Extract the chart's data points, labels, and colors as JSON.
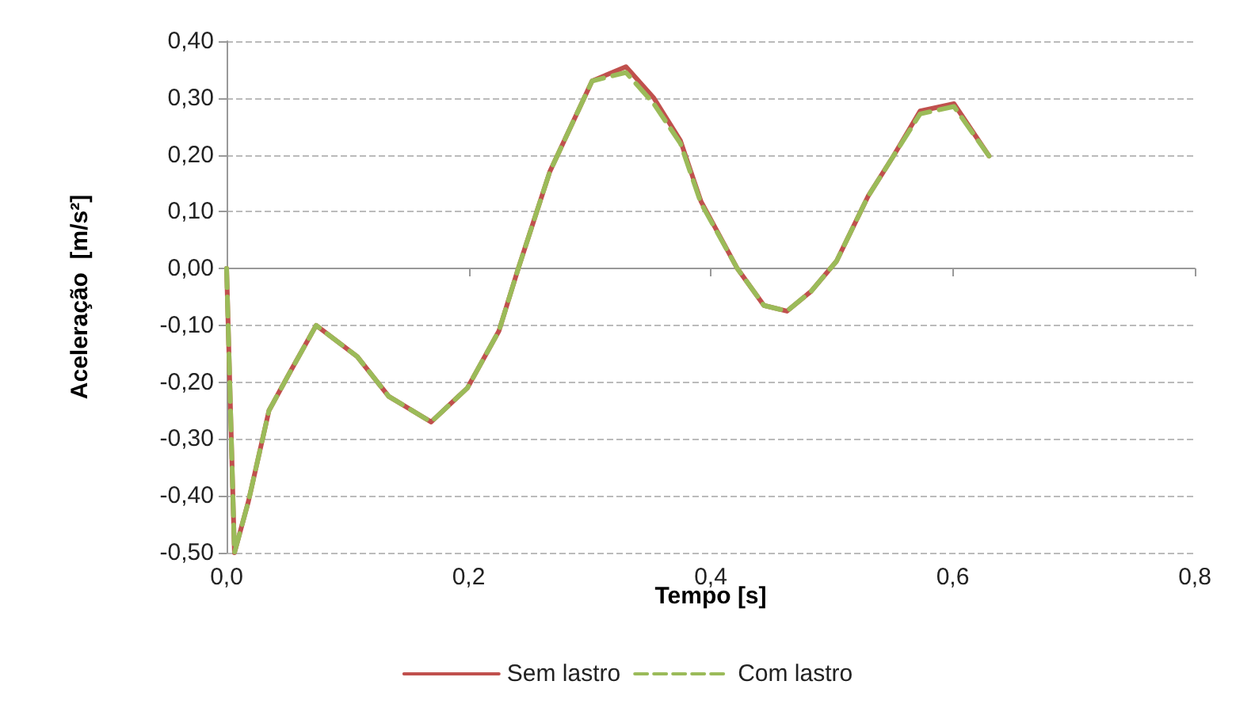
{
  "chart_data": {
    "type": "line",
    "xlabel": "Tempo [s]",
    "ylabel": "Aceleração  [m/s²]",
    "xlim": [
      0,
      0.8
    ],
    "xticks": [
      {
        "value": 0,
        "label": "0,0"
      },
      {
        "value": 0.2,
        "label": "0,2"
      },
      {
        "value": 0.4,
        "label": "0,4"
      },
      {
        "value": 0.6,
        "label": "0,6"
      },
      {
        "value": 0.8,
        "label": "0,8"
      }
    ],
    "ylim": [
      -0.5,
      0.4
    ],
    "yticks": [
      {
        "value": -0.5,
        "label": "-0,50"
      },
      {
        "value": -0.4,
        "label": "-0,40"
      },
      {
        "value": -0.3,
        "label": "-0,30"
      },
      {
        "value": -0.2,
        "label": "-0,20"
      },
      {
        "value": -0.1,
        "label": "-0,10"
      },
      {
        "value": 0,
        "label": "0,00"
      },
      {
        "value": 0.1,
        "label": "0,10"
      },
      {
        "value": 0.2,
        "label": "0,20"
      },
      {
        "value": 0.3,
        "label": "0,30"
      },
      {
        "value": 0.4,
        "label": "0,40"
      }
    ],
    "grid": "y",
    "legend": "bottom",
    "marker": "none",
    "x": [
      0,
      0.0065,
      0.018,
      0.035,
      0.053,
      0.074,
      0.108,
      0.134,
      0.169,
      0.199,
      0.225,
      0.241,
      0.267,
      0.302,
      0.33,
      0.353,
      0.375,
      0.392,
      0.422,
      0.444,
      0.463,
      0.483,
      0.504,
      0.53,
      0.551,
      0.573,
      0.601,
      0.63
    ],
    "series": [
      {
        "name": "Sem lastro",
        "color": "#c0504d",
        "line_style": "solid",
        "values": [
          0,
          -0.5,
          -0.41,
          -0.25,
          -0.18,
          -0.1,
          -0.155,
          -0.225,
          -0.27,
          -0.21,
          -0.11,
          0,
          0.17,
          0.33,
          0.355,
          0.3,
          0.225,
          0.118,
          0,
          -0.065,
          -0.075,
          -0.04,
          0.013,
          0.127,
          0.198,
          0.277,
          0.29,
          0.198
        ]
      },
      {
        "name": "Com lastro",
        "color": "#9bbb59",
        "line_style": "dashed",
        "values": [
          0,
          -0.5,
          -0.41,
          -0.25,
          -0.18,
          -0.1,
          -0.155,
          -0.225,
          -0.27,
          -0.21,
          -0.11,
          0,
          0.17,
          0.33,
          0.345,
          0.29,
          0.22,
          0.115,
          0,
          -0.065,
          -0.075,
          -0.04,
          0.013,
          0.127,
          0.198,
          0.272,
          0.285,
          0.198
        ]
      }
    ]
  }
}
